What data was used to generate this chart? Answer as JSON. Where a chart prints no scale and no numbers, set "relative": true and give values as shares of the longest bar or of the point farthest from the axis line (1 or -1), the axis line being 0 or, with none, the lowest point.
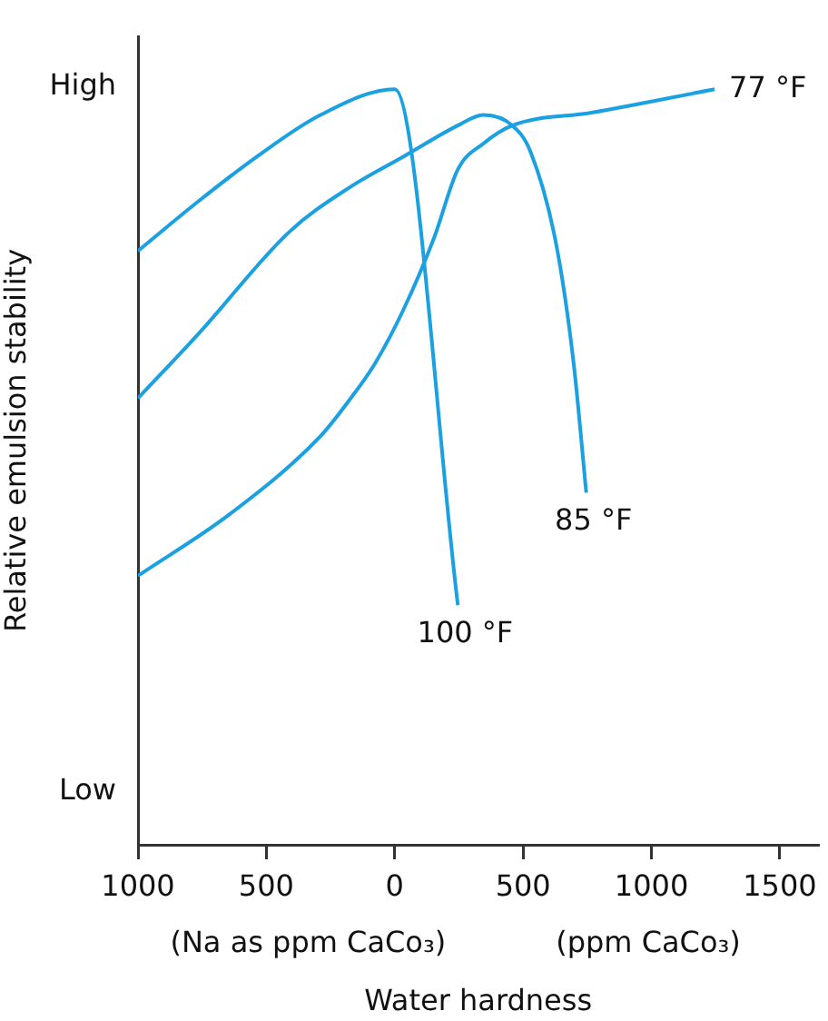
{
  "chart_data": {
    "type": "line",
    "relative": true,
    "xlabel": "Water hardness",
    "ylabel": "Relative emulsion stability",
    "xlim": [
      -1000,
      1650
    ],
    "xticks": [
      {
        "value": -1000,
        "label": "1000"
      },
      {
        "value": -500,
        "label": "500"
      },
      0,
      500,
      1000,
      1500
    ],
    "grid": false,
    "legend": false,
    "marker": "none",
    "line_style": "solid",
    "annotations": [
      "High",
      "Low",
      "(Na as ppm CaCo₃)",
      "(ppm CaCo₃)"
    ],
    "series": [
      {
        "name": "100 °F",
        "color": "#1ba1e2",
        "x": [
          -1000,
          -760,
          -528,
          -289,
          0,
          246
        ],
        "values": [
          0.786,
          0.853,
          0.913,
          0.966,
          1.0,
          0.317
        ]
      },
      {
        "name": "85 °F",
        "color": "#1ba1e2",
        "x": [
          -1000,
          -760,
          -408,
          -176,
          35,
          246,
          345,
          458,
          528,
          627,
          697,
          746
        ],
        "values": [
          0.591,
          0.678,
          0.812,
          0.87,
          0.911,
          0.952,
          0.966,
          0.952,
          0.918,
          0.798,
          0.637,
          0.466
        ]
      },
      {
        "name": "77 °F",
        "color": "#1ba1e2",
        "x": [
          -1000,
          -641,
          -289,
          -176,
          -77,
          35,
          155,
          246,
          345,
          458,
          767,
          1246
        ],
        "values": [
          0.356,
          0.438,
          0.541,
          0.589,
          0.637,
          0.709,
          0.805,
          0.894,
          0.928,
          0.952,
          0.969,
          1.0
        ]
      }
    ]
  }
}
